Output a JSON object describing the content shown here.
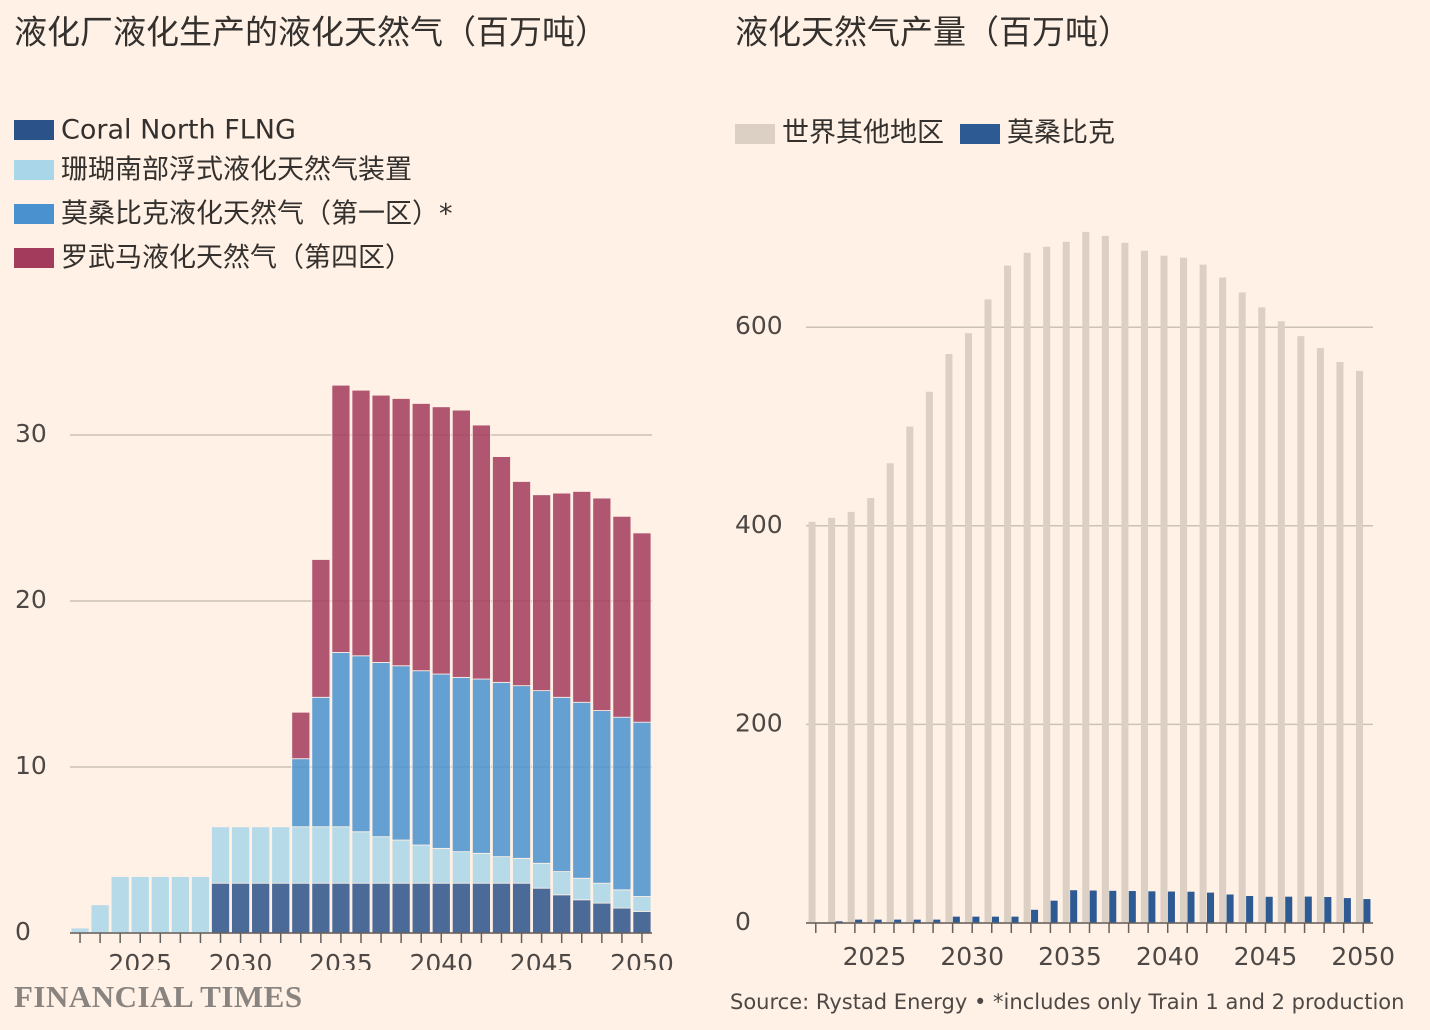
{
  "chart_data": [
    {
      "type": "bar",
      "stacked": true,
      "title": "液化厂液化生产的液化天然气（百万吨）",
      "x": [
        2022,
        2023,
        2024,
        2025,
        2026,
        2027,
        2028,
        2029,
        2030,
        2031,
        2032,
        2033,
        2034,
        2035,
        2036,
        2037,
        2038,
        2039,
        2040,
        2041,
        2042,
        2043,
        2044,
        2045,
        2046,
        2047,
        2048,
        2049,
        2050
      ],
      "xlim": [
        2021.5,
        2050.5
      ],
      "xticks": [
        2025,
        2030,
        2035,
        2040,
        2045,
        2050
      ],
      "ylim": [
        0,
        34
      ],
      "yticks": [
        0,
        10,
        20,
        30
      ],
      "grid": true,
      "series": [
        {
          "name": "Coral North FLNG",
          "color": "#2b5289",
          "values": [
            0,
            0,
            0,
            0,
            0,
            0,
            0,
            3.0,
            3.0,
            3.0,
            3.0,
            3.0,
            3.0,
            3.0,
            3.0,
            3.0,
            3.0,
            3.0,
            3.0,
            3.0,
            3.0,
            3.0,
            3.0,
            2.7,
            2.3,
            2.0,
            1.8,
            1.5,
            1.3
          ]
        },
        {
          "name": "珊瑚南部浮式液化天然气装置",
          "color": "#a9d6e9",
          "values": [
            0.3,
            1.7,
            3.4,
            3.4,
            3.4,
            3.4,
            3.4,
            3.4,
            3.4,
            3.4,
            3.4,
            3.4,
            3.4,
            3.4,
            3.1,
            2.8,
            2.6,
            2.3,
            2.1,
            1.9,
            1.8,
            1.6,
            1.5,
            1.5,
            1.4,
            1.3,
            1.2,
            1.1,
            0.9
          ]
        },
        {
          "name": "莫桑比克液化天然气（第一区）*",
          "color": "#4a92cf",
          "values": [
            0,
            0,
            0,
            0,
            0,
            0,
            0,
            0,
            0,
            0,
            0,
            4.1,
            7.8,
            10.5,
            10.6,
            10.5,
            10.5,
            10.5,
            10.5,
            10.5,
            10.5,
            10.5,
            10.4,
            10.4,
            10.5,
            10.6,
            10.4,
            10.4,
            10.5
          ]
        },
        {
          "name": "罗武马液化天然气（第四区）",
          "color": "#a33b5c",
          "values": [
            0,
            0,
            0,
            0,
            0,
            0,
            0,
            0,
            0,
            0,
            0,
            2.8,
            8.3,
            16.1,
            16.0,
            16.1,
            16.1,
            16.1,
            16.1,
            16.1,
            15.3,
            13.6,
            12.3,
            11.8,
            12.3,
            12.7,
            12.8,
            12.1,
            11.4
          ]
        }
      ]
    },
    {
      "type": "bar",
      "stacked": false,
      "title": "液化天然气产量（百万吨）",
      "x": [
        2022,
        2023,
        2024,
        2025,
        2026,
        2027,
        2028,
        2029,
        2030,
        2031,
        2032,
        2033,
        2034,
        2035,
        2036,
        2037,
        2038,
        2039,
        2040,
        2041,
        2042,
        2043,
        2044,
        2045,
        2046,
        2047,
        2048,
        2049,
        2050
      ],
      "xlim": [
        2021.5,
        2050.5
      ],
      "xticks": [
        2025,
        2030,
        2035,
        2040,
        2045,
        2050
      ],
      "ylim": [
        0,
        700
      ],
      "yticks": [
        0,
        200,
        400,
        600
      ],
      "grid": true,
      "series": [
        {
          "name": "世界其他地区",
          "color": "#dcd0c5",
          "values": [
            404,
            408,
            414,
            428,
            463,
            500,
            535,
            573,
            594,
            628,
            662,
            675,
            681,
            686,
            696,
            692,
            685,
            677,
            672,
            670,
            663,
            650,
            635,
            620,
            606,
            591,
            579,
            565,
            556
          ]
        },
        {
          "name": "莫桑比克",
          "color": "#2e5a94",
          "values": [
            0.3,
            1.7,
            3.4,
            3.4,
            3.4,
            3.4,
            3.4,
            6.4,
            6.4,
            6.4,
            6.4,
            13.3,
            22.5,
            33.0,
            32.7,
            32.4,
            32.2,
            31.9,
            31.7,
            31.5,
            30.6,
            28.7,
            27.2,
            26.4,
            26.5,
            26.6,
            26.2,
            25.1,
            24.1
          ]
        }
      ]
    }
  ],
  "source": "Source: Rystad Energy • *includes only Train 1 and 2 production",
  "brand": "FINANCIAL TIMES"
}
